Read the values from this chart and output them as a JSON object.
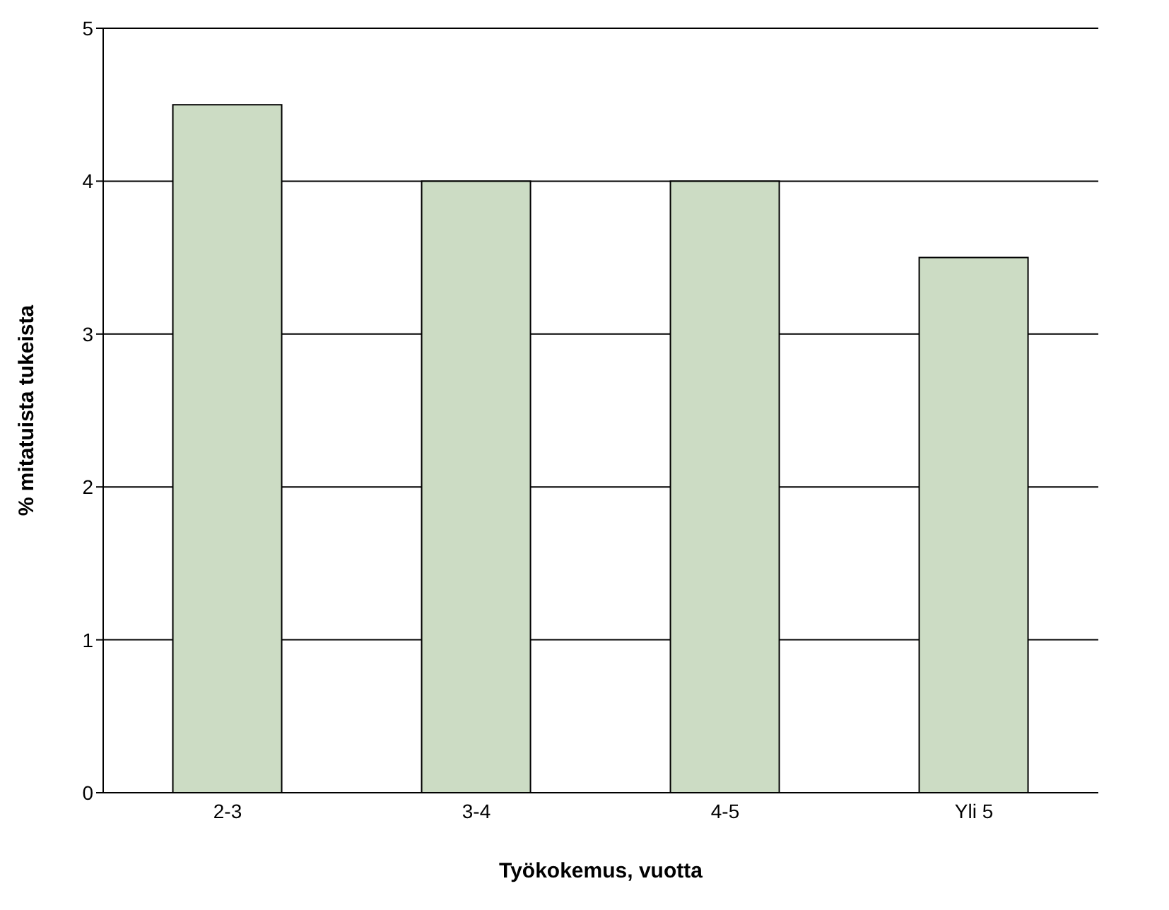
{
  "chart_data": {
    "type": "bar",
    "xlabel": "Työkokemus, vuotta",
    "ylabel": "% mitatuista tukeista",
    "categories": [
      "2-3",
      "3-4",
      "4-5",
      "Yli 5"
    ],
    "values": [
      4.5,
      4,
      4,
      3.5
    ],
    "color": "#ccdcc4",
    "ylim": [
      0,
      5
    ],
    "yticks": [
      0,
      1,
      2,
      3,
      4,
      5
    ],
    "grid": "y"
  }
}
